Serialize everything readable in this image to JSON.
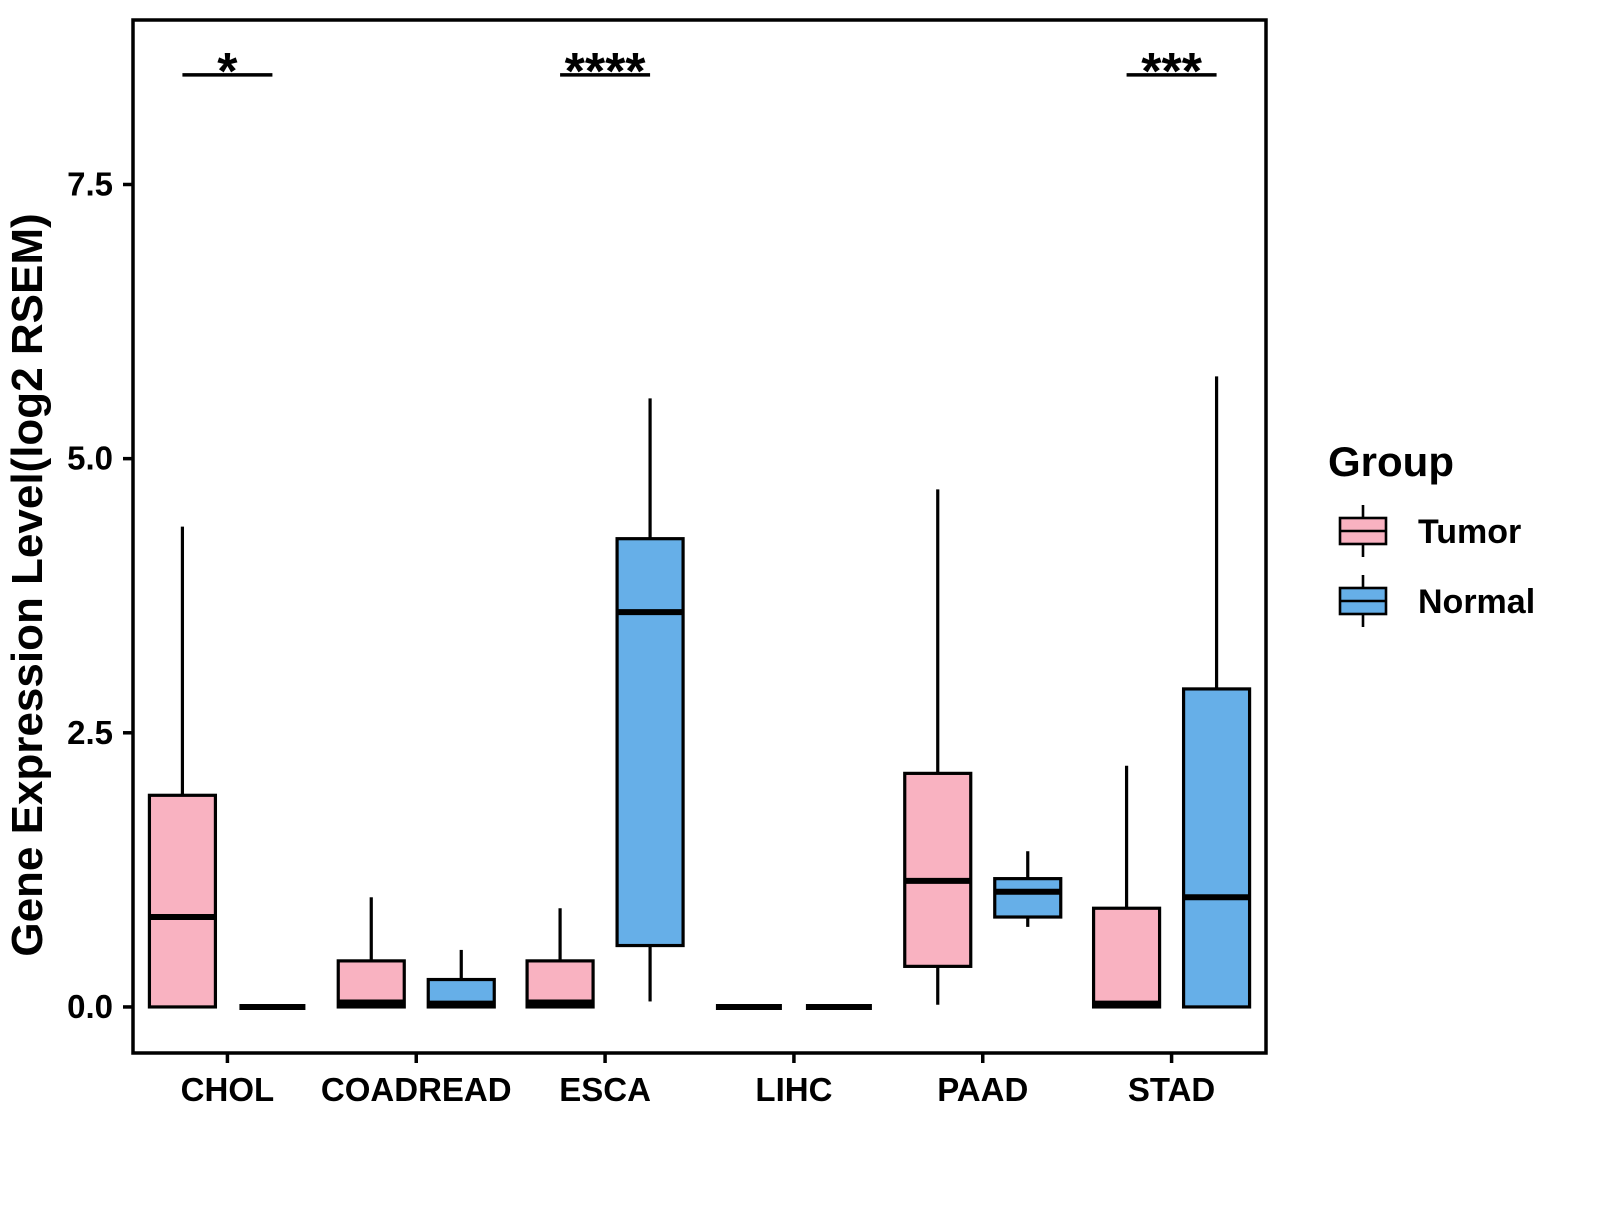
{
  "chart_data": {
    "type": "boxplot",
    "title": "",
    "xlabel": "",
    "ylabel": "Gene Expression Level(log2 RSEM)",
    "ylim": [
      -0.42,
      9.0
    ],
    "yticks": [
      0.0,
      2.5,
      5.0,
      7.5
    ],
    "grid": false,
    "categories": [
      "CHOL",
      "COADREAD",
      "ESCA",
      "LIHC",
      "PAAD",
      "STAD"
    ],
    "legend": {
      "title": "Group",
      "position": "right",
      "items": [
        {
          "label": "Tumor",
          "color": "#F9B2C1"
        },
        {
          "label": "Normal",
          "color": "#66AFE8"
        }
      ]
    },
    "series": [
      {
        "name": "Tumor",
        "color": "#F9B2C1",
        "boxes": [
          {
            "category": "CHOL",
            "low": 0.0,
            "q1": 0.0,
            "median": 0.82,
            "q3": 1.93,
            "high": 4.38
          },
          {
            "category": "COADREAD",
            "low": 0.0,
            "q1": 0.0,
            "median": 0.04,
            "q3": 0.42,
            "high": 1.0
          },
          {
            "category": "ESCA",
            "low": 0.0,
            "q1": 0.0,
            "median": 0.04,
            "q3": 0.42,
            "high": 0.9
          },
          {
            "category": "LIHC",
            "low": 0.0,
            "q1": 0.0,
            "median": 0.0,
            "q3": 0.0,
            "high": 0.0
          },
          {
            "category": "PAAD",
            "low": 0.02,
            "q1": 0.37,
            "median": 1.15,
            "q3": 2.13,
            "high": 4.72
          },
          {
            "category": "STAD",
            "low": 0.0,
            "q1": 0.0,
            "median": 0.03,
            "q3": 0.9,
            "high": 2.2
          }
        ]
      },
      {
        "name": "Normal",
        "color": "#66AFE8",
        "boxes": [
          {
            "category": "CHOL",
            "low": 0.0,
            "q1": 0.0,
            "median": 0.0,
            "q3": 0.0,
            "high": 0.0
          },
          {
            "category": "COADREAD",
            "low": 0.0,
            "q1": 0.0,
            "median": 0.03,
            "q3": 0.25,
            "high": 0.52
          },
          {
            "category": "ESCA",
            "low": 0.05,
            "q1": 0.56,
            "median": 3.6,
            "q3": 4.27,
            "high": 5.55
          },
          {
            "category": "LIHC",
            "low": 0.0,
            "q1": 0.0,
            "median": 0.0,
            "q3": 0.0,
            "high": 0.0
          },
          {
            "category": "PAAD",
            "low": 0.73,
            "q1": 0.82,
            "median": 1.05,
            "q3": 1.17,
            "high": 1.42
          },
          {
            "category": "STAD",
            "low": 0.0,
            "q1": 0.0,
            "median": 1.0,
            "q3": 2.9,
            "high": 5.75
          }
        ]
      }
    ],
    "significance": [
      {
        "category": "CHOL",
        "label": "*",
        "y": 8.5
      },
      {
        "category": "ESCA",
        "label": "****",
        "y": 8.5
      },
      {
        "category": "STAD",
        "label": "***",
        "y": 8.5
      }
    ]
  }
}
